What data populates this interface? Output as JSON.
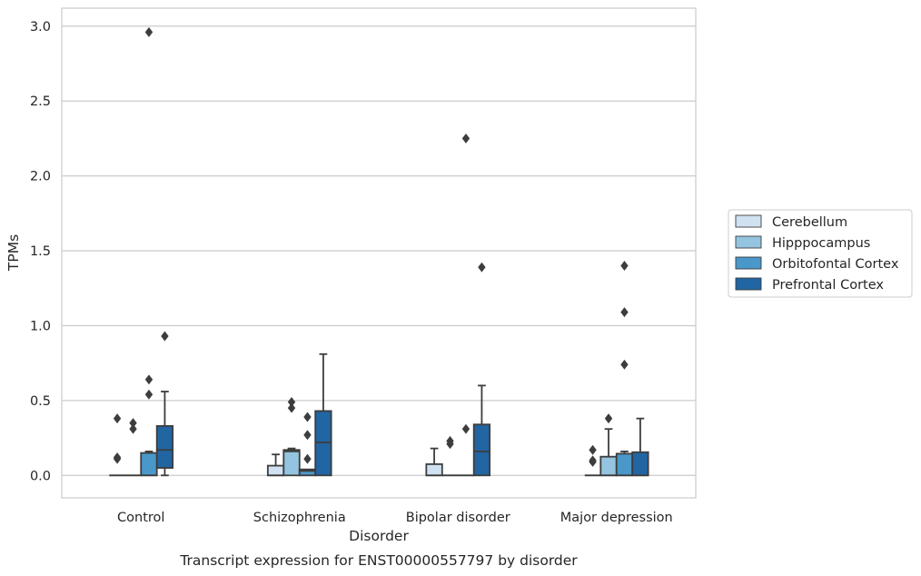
{
  "chart_data": {
    "type": "box",
    "title": "",
    "caption": "Transcript expression for ENST00000557797 by disorder",
    "xlabel": "Disorder",
    "ylabel": "TPMs",
    "ylim": [
      -0.15,
      3.12
    ],
    "yticks": [
      0.0,
      0.5,
      1.0,
      1.5,
      2.0,
      2.5,
      3.0
    ],
    "ytick_labels": [
      "0.0",
      "0.5",
      "1.0",
      "1.5",
      "2.0",
      "2.5",
      "3.0"
    ],
    "grid": "horizontal",
    "legend_position": "right",
    "categories": [
      "Control",
      "Schizophrenia",
      "Bipolar disorder",
      "Major depression"
    ],
    "series": [
      {
        "name": "Cerebellum",
        "color": "#d0e1f2",
        "boxes": [
          {
            "q1": 0.0,
            "median": 0.0,
            "q3": 0.0,
            "whislo": 0.0,
            "whishi": 0.0,
            "fliers": [
              0.11,
              0.12,
              0.38
            ]
          },
          {
            "q1": 0.0,
            "median": 0.0,
            "q3": 0.065,
            "whislo": 0.0,
            "whishi": 0.14,
            "fliers": []
          },
          {
            "q1": 0.0,
            "median": 0.0,
            "q3": 0.075,
            "whislo": 0.0,
            "whishi": 0.18,
            "fliers": []
          },
          {
            "q1": 0.0,
            "median": 0.0,
            "q3": 0.0,
            "whislo": 0.0,
            "whishi": 0.0,
            "fliers": [
              0.09,
              0.1,
              0.17
            ]
          }
        ]
      },
      {
        "name": "Hipppocampus",
        "color": "#94c4df",
        "boxes": [
          {
            "q1": 0.0,
            "median": 0.0,
            "q3": 0.0,
            "whislo": 0.0,
            "whishi": 0.0,
            "fliers": [
              0.31,
              0.35
            ]
          },
          {
            "q1": 0.0,
            "median": 0.16,
            "q3": 0.17,
            "whislo": 0.0,
            "whishi": 0.18,
            "fliers": [
              0.45,
              0.49
            ]
          },
          {
            "q1": 0.0,
            "median": 0.0,
            "q3": 0.0,
            "whislo": 0.0,
            "whishi": 0.0,
            "fliers": [
              0.21,
              0.23
            ]
          },
          {
            "q1": 0.0,
            "median": 0.0,
            "q3": 0.125,
            "whislo": 0.0,
            "whishi": 0.31,
            "fliers": [
              0.38
            ]
          }
        ]
      },
      {
        "name": "Orbitofontal Cortex",
        "color": "#4a98c9",
        "boxes": [
          {
            "q1": 0.0,
            "median": 0.0,
            "q3": 0.15,
            "whislo": 0.0,
            "whishi": 0.16,
            "fliers": [
              0.54,
              0.64,
              2.96
            ]
          },
          {
            "q1": 0.0,
            "median": 0.03,
            "q3": 0.04,
            "whislo": 0.0,
            "whishi": 0.04,
            "fliers": [
              0.11,
              0.27,
              0.39
            ]
          },
          {
            "q1": 0.0,
            "median": 0.0,
            "q3": 0.0,
            "whislo": 0.0,
            "whishi": 0.0,
            "fliers": [
              0.31,
              2.25
            ]
          },
          {
            "q1": 0.0,
            "median": 0.0,
            "q3": 0.145,
            "whislo": 0.0,
            "whishi": 0.16,
            "fliers": [
              0.74,
              1.09,
              1.4
            ]
          }
        ]
      },
      {
        "name": "Prefrontal Cortex",
        "color": "#2265a3",
        "boxes": [
          {
            "q1": 0.05,
            "median": 0.17,
            "q3": 0.33,
            "whislo": 0.0,
            "whishi": 0.56,
            "fliers": [
              0.93
            ]
          },
          {
            "q1": 0.0,
            "median": 0.22,
            "q3": 0.43,
            "whislo": 0.0,
            "whishi": 0.81,
            "fliers": []
          },
          {
            "q1": 0.0,
            "median": 0.16,
            "q3": 0.34,
            "whislo": 0.0,
            "whishi": 0.6,
            "fliers": [
              1.39
            ]
          },
          {
            "q1": 0.0,
            "median": 0.0,
            "q3": 0.155,
            "whislo": 0.0,
            "whishi": 0.38,
            "fliers": []
          }
        ]
      }
    ]
  }
}
